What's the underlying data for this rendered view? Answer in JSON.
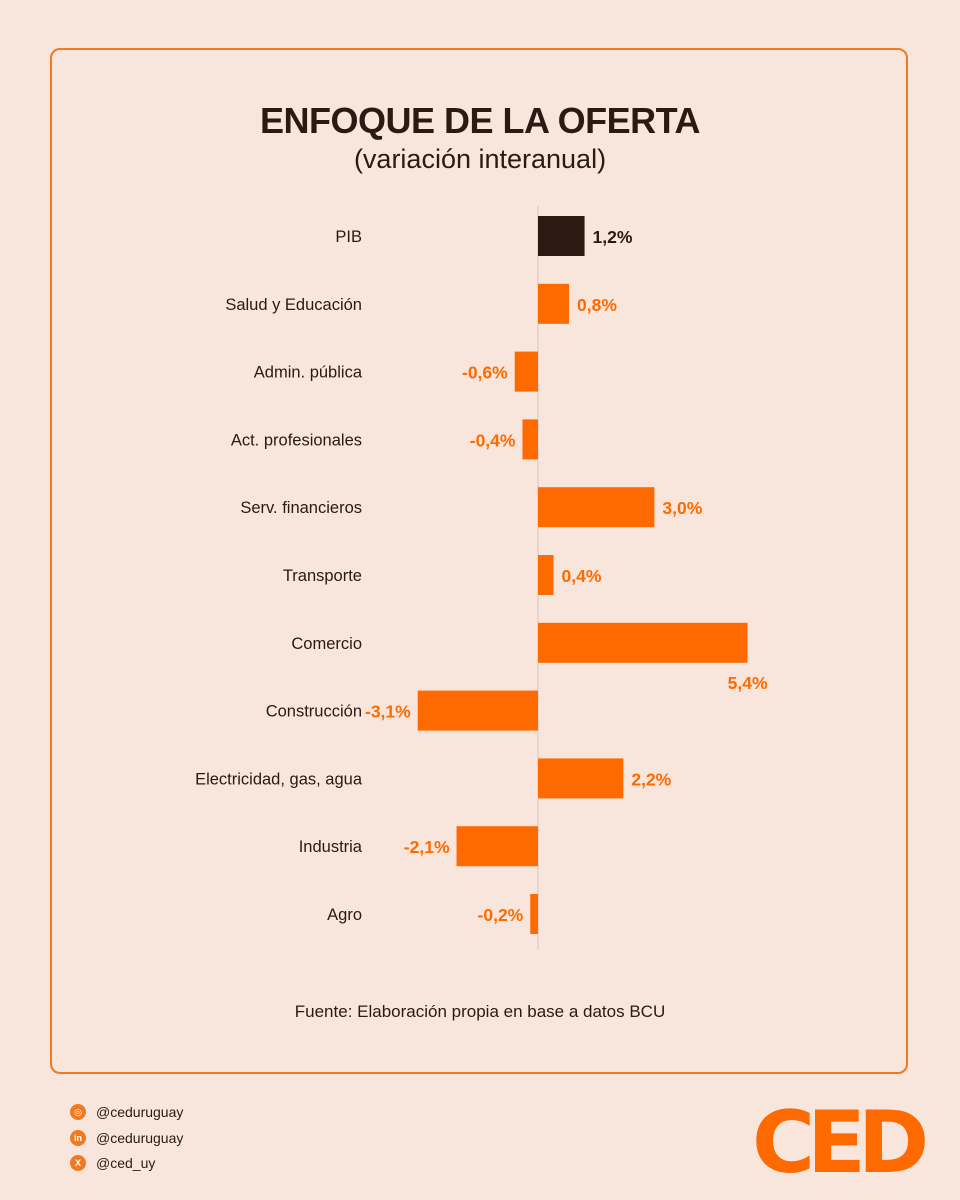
{
  "title": "ENFOQUE DE LA OFERTA",
  "subtitle": "(variación interanual)",
  "source": "Fuente: Elaboración propia en base a datos BCU",
  "colors": {
    "accent": "#ff6a00",
    "highlight": "#2a1a12",
    "background": "#f8e5dc",
    "border": "#f07a22"
  },
  "chart_data": {
    "type": "bar",
    "orientation": "horizontal",
    "title": "ENFOQUE DE LA OFERTA",
    "subtitle": "(variación interanual)",
    "xlabel": "",
    "ylabel": "",
    "xlim": [
      -3.5,
      5.5
    ],
    "categories": [
      "PIB",
      "Salud y Educación",
      "Admin. pública",
      "Act. profesionales",
      "Serv. financieros",
      "Transporte",
      "Comercio",
      "Construcción",
      "Electricidad, gas, agua",
      "Industria",
      "Agro"
    ],
    "values": [
      1.2,
      0.8,
      -0.6,
      -0.4,
      3.0,
      0.4,
      5.4,
      -3.1,
      2.2,
      -2.1,
      -0.2
    ],
    "labels": [
      "1,2%",
      "0,8%",
      "-0,6%",
      "-0,4%",
      "3,0%",
      "0,4%",
      "5,4%",
      "-3,1%",
      "2,2%",
      "-2,1%",
      "-0,2%"
    ],
    "highlight_category": "PIB"
  },
  "social": [
    {
      "icon": "instagram-icon",
      "glyph": "◎",
      "handle": "@ceduruguay"
    },
    {
      "icon": "linkedin-icon",
      "glyph": "in",
      "handle": "@ceduruguay"
    },
    {
      "icon": "x-icon",
      "glyph": "X",
      "handle": "@ced_uy"
    }
  ],
  "logo": "CED"
}
